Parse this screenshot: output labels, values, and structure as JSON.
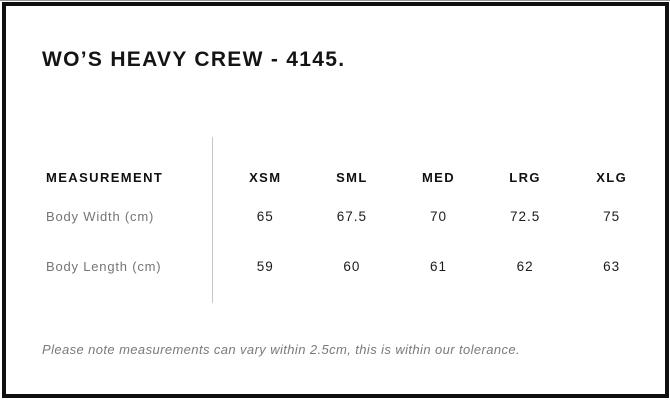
{
  "title": "WO’S HEAVY CREW - 4145.",
  "table": {
    "header_label": "MEASUREMENT",
    "size_headers": [
      "XSM",
      "SML",
      "MED",
      "LRG",
      "XLG"
    ],
    "rows": [
      {
        "label": "Body Width (cm)",
        "values": [
          "65",
          "67.5",
          "70",
          "72.5",
          "75"
        ]
      },
      {
        "label": "Body Length (cm)",
        "values": [
          "59",
          "60",
          "61",
          "62",
          "63"
        ]
      }
    ]
  },
  "footer_note": "Please note measurements can vary within 2.5cm, this is within our tolerance.",
  "colors": {
    "frame": "#0f0f0f",
    "text_primary": "#141414",
    "text_secondary": "#757575",
    "note_text": "#7a7a7a",
    "divider": "#c6c6c6",
    "background": "#ffffff"
  }
}
